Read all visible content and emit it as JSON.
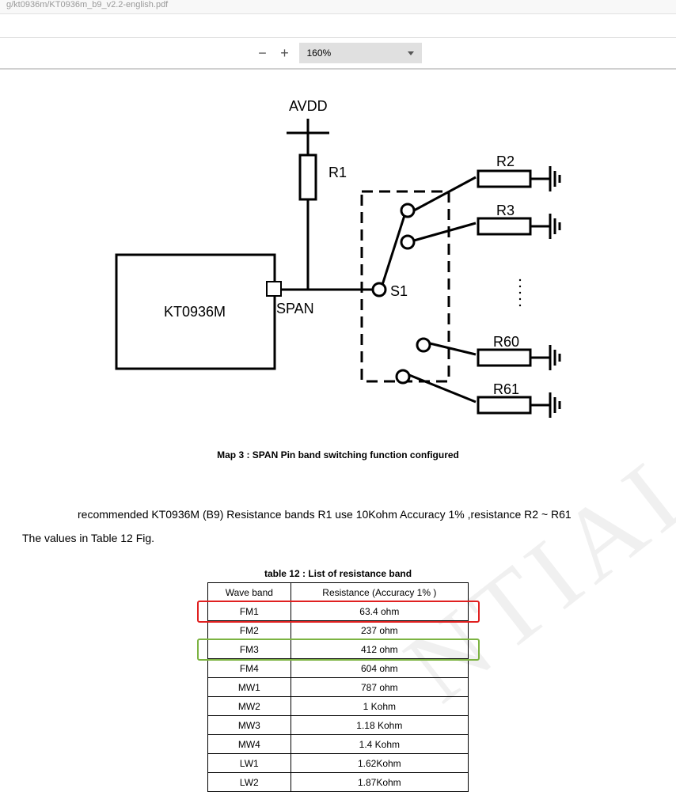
{
  "url_fragment": "g/kt0936m/KT0936m_b9_v2.2-english.pdf",
  "toolbar": {
    "zoom_out": "−",
    "zoom_in": "+",
    "zoom_value": "160%"
  },
  "diagram": {
    "avdd": "AVDD",
    "r1": "R1",
    "chip": "KT0936M",
    "span": "SPAN",
    "switch_label": "S1",
    "resistors": {
      "r2": "R2",
      "r3": "R3",
      "r60": "R60",
      "r61": "R61"
    },
    "stroke": "#000000",
    "stroke_width": 3
  },
  "caption_map": "Map 3 : SPAN Pin band switching function configured",
  "body_text": {
    "line1": "recommended KT0936M (B9) Resistance bands R1 use 10Kohm Accuracy 1% ,resistance R2 ~ R61",
    "line2": "The values in Table 12 Fig."
  },
  "caption_table": "table 12 : List of resistance band",
  "table": {
    "headers": [
      "Wave band",
      "Resistance (Accuracy 1% )"
    ],
    "rows": [
      [
        "FM1",
        "63.4 ohm"
      ],
      [
        "FM2",
        "237 ohm"
      ],
      [
        "FM3",
        "412 ohm"
      ],
      [
        "FM4",
        "604 ohm"
      ],
      [
        "MW1",
        "787 ohm"
      ],
      [
        "MW2",
        "1 Kohm"
      ],
      [
        "MW3",
        "1.18 Kohm"
      ],
      [
        "MW4",
        "1.4 Kohm"
      ],
      [
        "LW1",
        "1.62Kohm"
      ],
      [
        "LW2",
        "1.87Kohm"
      ]
    ],
    "highlight_red_row": 0,
    "highlight_green_row": 2,
    "hl_red_color": "#e02020",
    "hl_green_color": "#7cb342"
  },
  "watermark": "NTIAL"
}
